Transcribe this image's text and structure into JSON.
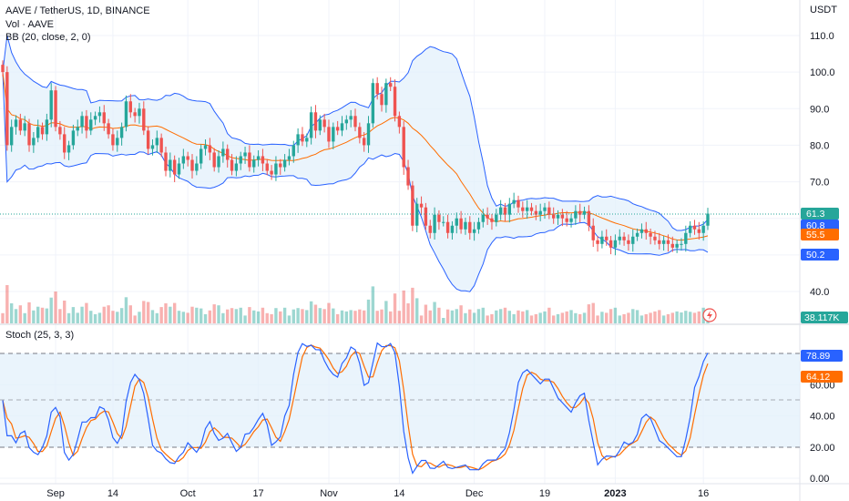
{
  "header": {
    "symbol": "AAVE / TetherUS, 1D, BINANCE",
    "volume": "Vol · AAVE",
    "bb": "BB (20, close, 2, 0)",
    "currency": "USDT"
  },
  "stoch_label": "Stoch (25, 3, 3)",
  "price_axis": [
    "110.0",
    "100.0",
    "90.0",
    "80.0",
    "70.0",
    "60.0",
    "50.0",
    "40.0"
  ],
  "stoch_axis": [
    "80.00",
    "60.00",
    "40.00",
    "20.00",
    "0.00"
  ],
  "time_axis": [
    "Sep",
    "14",
    "Oct",
    "17",
    "Nov",
    "14",
    "Dec",
    "19",
    "2023",
    "16"
  ],
  "badges": {
    "last": "61.3",
    "bb_upper": "60.8",
    "bb_basis": "55.5",
    "bb_lower": "50.2",
    "volume": "38.117K",
    "stoch_k": "78.89",
    "stoch_d": "64.12"
  },
  "colors": {
    "up": "#26a69a",
    "down": "#ef5350",
    "band": "#2962ff",
    "basis": "#ff6d00",
    "k": "#2962ff",
    "d": "#ff6d00",
    "fill": "#e3f0fb"
  },
  "chart_data": {
    "type": "candlestick",
    "price_series": [
      {
        "date": "Aug 20",
        "close": 100
      },
      {
        "date": "Aug 21",
        "close": 80
      },
      {
        "date": "Aug 22",
        "close": 85
      },
      {
        "date": "Aug 23",
        "close": 87
      },
      {
        "date": "Aug 24",
        "close": 84
      },
      {
        "date": "Aug 25",
        "close": 86
      },
      {
        "date": "Aug 26",
        "close": 80
      },
      {
        "date": "Aug 27",
        "close": 82
      },
      {
        "date": "Aug 28",
        "close": 85
      },
      {
        "date": "Aug 29",
        "close": 83
      },
      {
        "date": "Aug 30",
        "close": 87
      },
      {
        "date": "Aug 31",
        "close": 95
      },
      {
        "date": "Sep 1",
        "close": 85
      },
      {
        "date": "Sep 2",
        "close": 83
      },
      {
        "date": "Sep 3",
        "close": 78
      },
      {
        "date": "Sep 4",
        "close": 80
      },
      {
        "date": "Sep 5",
        "close": 84
      },
      {
        "date": "Sep 6",
        "close": 85
      },
      {
        "date": "Sep 7",
        "close": 88
      },
      {
        "date": "Sep 8",
        "close": 84
      },
      {
        "date": "Sep 9",
        "close": 87
      },
      {
        "date": "Sep 10",
        "close": 88
      },
      {
        "date": "Sep 11",
        "close": 89
      },
      {
        "date": "Sep 12",
        "close": 86
      },
      {
        "date": "Sep 13",
        "close": 83
      },
      {
        "date": "Sep 14",
        "close": 80
      },
      {
        "date": "Sep 15",
        "close": 82
      },
      {
        "date": "Sep 16",
        "close": 85
      },
      {
        "date": "Sep 17",
        "close": 92
      },
      {
        "date": "Sep 18",
        "close": 89
      },
      {
        "date": "Sep 19",
        "close": 88
      },
      {
        "date": "Sep 20",
        "close": 90
      },
      {
        "date": "Sep 21",
        "close": 84
      },
      {
        "date": "Sep 22",
        "close": 79
      },
      {
        "date": "Sep 23",
        "close": 80
      },
      {
        "date": "Sep 24",
        "close": 82
      },
      {
        "date": "Sep 25",
        "close": 78
      },
      {
        "date": "Sep 26",
        "close": 73
      },
      {
        "date": "Sep 27",
        "close": 76
      },
      {
        "date": "Sep 28",
        "close": 72
      },
      {
        "date": "Sep 29",
        "close": 75
      },
      {
        "date": "Sep 30",
        "close": 77
      },
      {
        "date": "Oct 1",
        "close": 76
      },
      {
        "date": "Oct 2",
        "close": 73
      },
      {
        "date": "Oct 3",
        "close": 75
      },
      {
        "date": "Oct 4",
        "close": 79
      },
      {
        "date": "Oct 5",
        "close": 80
      },
      {
        "date": "Oct 6",
        "close": 78
      },
      {
        "date": "Oct 7",
        "close": 74
      },
      {
        "date": "Oct 8",
        "close": 77
      },
      {
        "date": "Oct 9",
        "close": 79
      },
      {
        "date": "Oct 10",
        "close": 76
      },
      {
        "date": "Oct 11",
        "close": 73
      },
      {
        "date": "Oct 12",
        "close": 75
      },
      {
        "date": "Oct 13",
        "close": 77
      },
      {
        "date": "Oct 14",
        "close": 78
      },
      {
        "date": "Oct 15",
        "close": 74
      },
      {
        "date": "Oct 16",
        "close": 76
      },
      {
        "date": "Oct 17",
        "close": 77
      },
      {
        "date": "Oct 18",
        "close": 75
      },
      {
        "date": "Oct 19",
        "close": 73
      },
      {
        "date": "Oct 20",
        "close": 72
      },
      {
        "date": "Oct 21",
        "close": 75
      },
      {
        "date": "Oct 22",
        "close": 74
      },
      {
        "date": "Oct 23",
        "close": 76
      },
      {
        "date": "Oct 24",
        "close": 77
      },
      {
        "date": "Oct 25",
        "close": 80
      },
      {
        "date": "Oct 26",
        "close": 83
      },
      {
        "date": "Oct 27",
        "close": 81
      },
      {
        "date": "Oct 28",
        "close": 82
      },
      {
        "date": "Oct 29",
        "close": 89
      },
      {
        "date": "Oct 30",
        "close": 84
      },
      {
        "date": "Oct 31",
        "close": 87
      },
      {
        "date": "Nov 1",
        "close": 85
      },
      {
        "date": "Nov 2",
        "close": 81
      },
      {
        "date": "Nov 3",
        "close": 85
      },
      {
        "date": "Nov 4",
        "close": 84
      },
      {
        "date": "Nov 5",
        "close": 86
      },
      {
        "date": "Nov 6",
        "close": 87
      },
      {
        "date": "Nov 7",
        "close": 88
      },
      {
        "date": "Nov 8",
        "close": 85
      },
      {
        "date": "Nov 9",
        "close": 82
      },
      {
        "date": "Nov 10",
        "close": 80
      },
      {
        "date": "Nov 11",
        "close": 86
      },
      {
        "date": "Nov 12",
        "close": 97
      },
      {
        "date": "Nov 13",
        "close": 94
      },
      {
        "date": "Nov 14",
        "close": 91
      },
      {
        "date": "Nov 15",
        "close": 97
      },
      {
        "date": "Nov 16",
        "close": 96
      },
      {
        "date": "Nov 17",
        "close": 88
      },
      {
        "date": "Nov 18",
        "close": 85
      },
      {
        "date": "Nov 19",
        "close": 74
      },
      {
        "date": "Nov 20",
        "close": 69
      },
      {
        "date": "Nov 21",
        "close": 58
      },
      {
        "date": "Nov 22",
        "close": 64
      },
      {
        "date": "Nov 23",
        "close": 63
      },
      {
        "date": "Nov 24",
        "close": 58
      },
      {
        "date": "Nov 25",
        "close": 56
      },
      {
        "date": "Nov 26",
        "close": 61
      },
      {
        "date": "Nov 27",
        "close": 59
      },
      {
        "date": "Nov 28",
        "close": 59
      },
      {
        "date": "Nov 29",
        "close": 56
      },
      {
        "date": "Nov 30",
        "close": 58
      },
      {
        "date": "Dec 1",
        "close": 60
      },
      {
        "date": "Dec 2",
        "close": 57
      },
      {
        "date": "Dec 3",
        "close": 59
      },
      {
        "date": "Dec 4",
        "close": 56
      },
      {
        "date": "Dec 5",
        "close": 57
      },
      {
        "date": "Dec 6",
        "close": 59
      },
      {
        "date": "Dec 7",
        "close": 61
      },
      {
        "date": "Dec 8",
        "close": 60
      },
      {
        "date": "Dec 9",
        "close": 59
      },
      {
        "date": "Dec 10",
        "close": 61
      },
      {
        "date": "Dec 11",
        "close": 63
      },
      {
        "date": "Dec 12",
        "close": 61
      },
      {
        "date": "Dec 13",
        "close": 64
      },
      {
        "date": "Dec 14",
        "close": 65
      },
      {
        "date": "Dec 15",
        "close": 63
      },
      {
        "date": "Dec 16",
        "close": 62
      },
      {
        "date": "Dec 17",
        "close": 63
      },
      {
        "date": "Dec 18",
        "close": 62
      },
      {
        "date": "Dec 19",
        "close": 61
      },
      {
        "date": "Dec 20",
        "close": 62
      },
      {
        "date": "Dec 21",
        "close": 63
      },
      {
        "date": "Dec 22",
        "close": 61
      },
      {
        "date": "Dec 23",
        "close": 60
      },
      {
        "date": "Dec 24",
        "close": 61
      },
      {
        "date": "Dec 25",
        "close": 60
      },
      {
        "date": "Dec 26",
        "close": 59
      },
      {
        "date": "Dec 27",
        "close": 60
      },
      {
        "date": "Dec 28",
        "close": 62
      },
      {
        "date": "Dec 29",
        "close": 61
      },
      {
        "date": "Dec 30",
        "close": 62
      },
      {
        "date": "Dec 31",
        "close": 58
      },
      {
        "date": "Jan 1",
        "close": 54
      },
      {
        "date": "Jan 2",
        "close": 53
      },
      {
        "date": "Jan 3",
        "close": 55
      },
      {
        "date": "Jan 4",
        "close": 54
      },
      {
        "date": "Jan 5",
        "close": 52
      },
      {
        "date": "Jan 6",
        "close": 54
      },
      {
        "date": "Jan 7",
        "close": 55
      },
      {
        "date": "Jan 8",
        "close": 54
      },
      {
        "date": "Jan 9",
        "close": 53
      },
      {
        "date": "Jan 10",
        "close": 55
      },
      {
        "date": "Jan 11",
        "close": 56
      },
      {
        "date": "Jan 12",
        "close": 57
      },
      {
        "date": "Jan 13",
        "close": 56
      },
      {
        "date": "Jan 14",
        "close": 55
      },
      {
        "date": "Jan 15",
        "close": 54
      },
      {
        "date": "Jan 16",
        "close": 53
      },
      {
        "date": "Jan 17",
        "close": 54
      },
      {
        "date": "Jan 18",
        "close": 53
      },
      {
        "date": "Jan 19",
        "close": 52
      },
      {
        "date": "Jan 20",
        "close": 53
      },
      {
        "date": "Jan 21",
        "close": 53
      },
      {
        "date": "Jan 22",
        "close": 56
      },
      {
        "date": "Jan 23",
        "close": 58
      },
      {
        "date": "Jan 24",
        "close": 57
      },
      {
        "date": "Jan 25",
        "close": 56
      },
      {
        "date": "Jan 26",
        "close": 58
      },
      {
        "date": "Jan 27",
        "close": 61.3
      }
    ],
    "last_price": 61.3,
    "bollinger": {
      "upper": 60.8,
      "basis": 55.5,
      "lower": 50.2
    },
    "volume_last": "38.117K",
    "stochastic": {
      "k_last": 78.89,
      "d_last": 64.12,
      "upper_band": 80,
      "middle": 50,
      "lower_band": 20
    },
    "ylim_price": [
      33,
      115
    ],
    "ylim_stoch": [
      0,
      100
    ],
    "grid": true
  }
}
